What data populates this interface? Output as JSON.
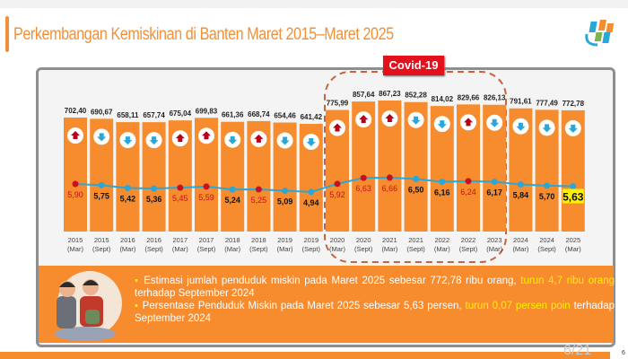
{
  "header": {
    "title": "Perkembangan Kemiskinan di Banten Maret 2015–Maret 2025"
  },
  "annotation": {
    "covid_label": "Covid-19"
  },
  "colors": {
    "bar": "#f68c2e",
    "line": "#2aa7d9",
    "up": "#b3001b",
    "down": "#2aa7d9",
    "highlight": "#fff200"
  },
  "chart_data": {
    "type": "bar",
    "categories": [
      "2015 (Mar)",
      "2015 (Sept)",
      "2016 (Mar)",
      "2016 (Sept)",
      "2017 (Mar)",
      "2017 (Sept)",
      "2018 (Mar)",
      "2018 (Sept)",
      "2019 (Mar)",
      "2019 (Sept)",
      "2020 (Mar)",
      "2020 (Sept)",
      "2021 (Mar)",
      "2021 (Sept)",
      "2022 (Mar)",
      "2022 (Sept)",
      "2023 (Mar)",
      "2024 (Mar)",
      "2024 (Sept)",
      "2025 (Mar)"
    ],
    "years": [
      "2015",
      "2015",
      "2016",
      "2016",
      "2017",
      "2017",
      "2018",
      "2018",
      "2019",
      "2019",
      "2020",
      "2020",
      "2021",
      "2021",
      "2022",
      "2022",
      "2023",
      "2024",
      "2024",
      "2025"
    ],
    "periods": [
      "(Mar)",
      "(Sept)",
      "(Mar)",
      "(Sept)",
      "(Mar)",
      "(Sept)",
      "(Mar)",
      "(Sept)",
      "(Mar)",
      "(Sept)",
      "(Mar)",
      "(Sept)",
      "(Mar)",
      "(Sept)",
      "(Mar)",
      "(Sept)",
      "(Mar)",
      "(Mar)",
      "(Sept)",
      "(Mar)"
    ],
    "series": [
      {
        "type": "bar",
        "values": [
          702.4,
          690.67,
          658.11,
          657.74,
          675.04,
          699.83,
          661.36,
          668.74,
          654.46,
          641.42,
          775.99,
          857.64,
          867.23,
          852.28,
          814.02,
          829.66,
          826.13,
          791.61,
          777.49,
          772.78
        ],
        "labels": [
          "702,40",
          "690,67",
          "658,11",
          "657,74",
          "675,04",
          "699,83",
          "661,36",
          "668,74",
          "654,46",
          "641,42",
          "775,99",
          "857,64",
          "867,23",
          "852,28",
          "814,02",
          "829,66",
          "826,13",
          "791,61",
          "777,49",
          "772,78"
        ]
      },
      {
        "type": "line",
        "values": [
          5.9,
          5.75,
          5.42,
          5.36,
          5.45,
          5.59,
          5.24,
          5.25,
          5.09,
          4.94,
          5.92,
          6.63,
          6.66,
          6.5,
          6.16,
          6.24,
          6.17,
          5.84,
          5.7,
          5.63
        ],
        "labels": [
          "5,90",
          "5,75",
          "5,42",
          "5,36",
          "5,45",
          "5,59",
          "5,24",
          "5,25",
          "5,09",
          "4,94",
          "5,92",
          "6,63",
          "6,66",
          "6,50",
          "6,16",
          "6,24",
          "6,17",
          "5,84",
          "5,70",
          "5,63"
        ]
      }
    ],
    "trend": [
      "up",
      "down",
      "down",
      "down",
      "up",
      "up",
      "down",
      "up",
      "down",
      "down",
      "up",
      "up",
      "up",
      "down",
      "down",
      "up",
      "down",
      "down",
      "down",
      "down"
    ],
    "highlighted_index": 19,
    "covid_range": [
      "2020 (Mar)",
      "2023 (Mar)"
    ]
  },
  "notes": {
    "b1_main": "Estimasi jumlah penduduk miskin pada Maret 2025 sebesar 772,78 ribu orang, ",
    "b1_hl": "turun 4,7 ribu orang",
    "b1_end": " terhadap September 2024",
    "b2_main": "Persentase Penduduk Miskin pada Maret 2025 sebesar 5,63 persen, ",
    "b2_hl": "turun 0,07 persen poin",
    "b2_end": " terhadap September 2024"
  },
  "footer": {
    "page": "6/21",
    "page_small": "6"
  }
}
